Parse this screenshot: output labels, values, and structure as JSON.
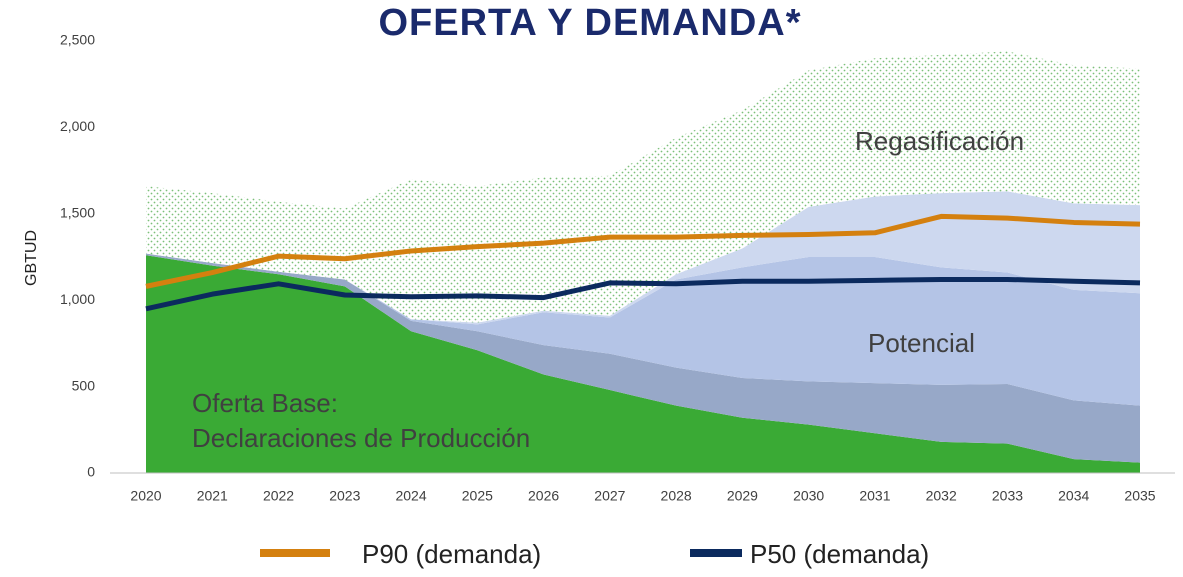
{
  "chart_data": {
    "type": "stacked_area_line",
    "title": "OFERTA Y DEMANDA*",
    "y_label": "GBTUD",
    "categories": [
      "2020",
      "2021",
      "2022",
      "2023",
      "2024",
      "2025",
      "2026",
      "2027",
      "2028",
      "2029",
      "2030",
      "2031",
      "2032",
      "2033",
      "2034",
      "2035"
    ],
    "ylim": [
      0,
      2500
    ],
    "yticks": [
      0,
      500,
      {
        "value": 1000,
        "label": "1,000"
      },
      {
        "value": 1500,
        "label": "1,500"
      },
      {
        "value": 2000,
        "label": "2,000"
      },
      {
        "value": 2500,
        "label": "2,500"
      }
    ],
    "areas": [
      {
        "color": "#3aaa35",
        "values": [
          1260,
          1200,
          1150,
          1080,
          820,
          710,
          570,
          480,
          390,
          320,
          280,
          230,
          180,
          170,
          80,
          60
        ]
      },
      {
        "color": "#97a8c8",
        "values": [
          10,
          15,
          15,
          40,
          60,
          110,
          170,
          210,
          220,
          230,
          250,
          290,
          330,
          345,
          340,
          330
        ]
      },
      {
        "color": "#b4c4e6",
        "values": [
          0,
          0,
          0,
          0,
          10,
          40,
          190,
          210,
          510,
          640,
          720,
          730,
          680,
          645,
          640,
          650
        ]
      },
      {
        "color": "#cdd8ef",
        "values": [
          0,
          0,
          0,
          0,
          0,
          10,
          10,
          10,
          30,
          110,
          290,
          350,
          430,
          470,
          500,
          510
        ]
      },
      {
        "color": "#7cc07a",
        "pattern": "dots",
        "values": [
          390,
          405,
          405,
          410,
          810,
          790,
          770,
          810,
          790,
          800,
          790,
          800,
          800,
          810,
          800,
          790
        ]
      }
    ],
    "series": [
      {
        "name": "P90 (demanda)",
        "color": "#d4800f",
        "values": [
          1080,
          1160,
          1255,
          1240,
          1285,
          1310,
          1330,
          1365,
          1365,
          1375,
          1380,
          1390,
          1485,
          1475,
          1450,
          1440
        ]
      },
      {
        "name": "P50 (demanda)",
        "color": "#0b2a5e",
        "values": [
          950,
          1035,
          1095,
          1030,
          1020,
          1025,
          1015,
          1100,
          1095,
          1110,
          1110,
          1115,
          1120,
          1120,
          1110,
          1100
        ]
      }
    ],
    "annotations": [
      "Regasificación",
      "Potencial",
      "Oferta Base:",
      "Declaraciones de Producción"
    ]
  }
}
